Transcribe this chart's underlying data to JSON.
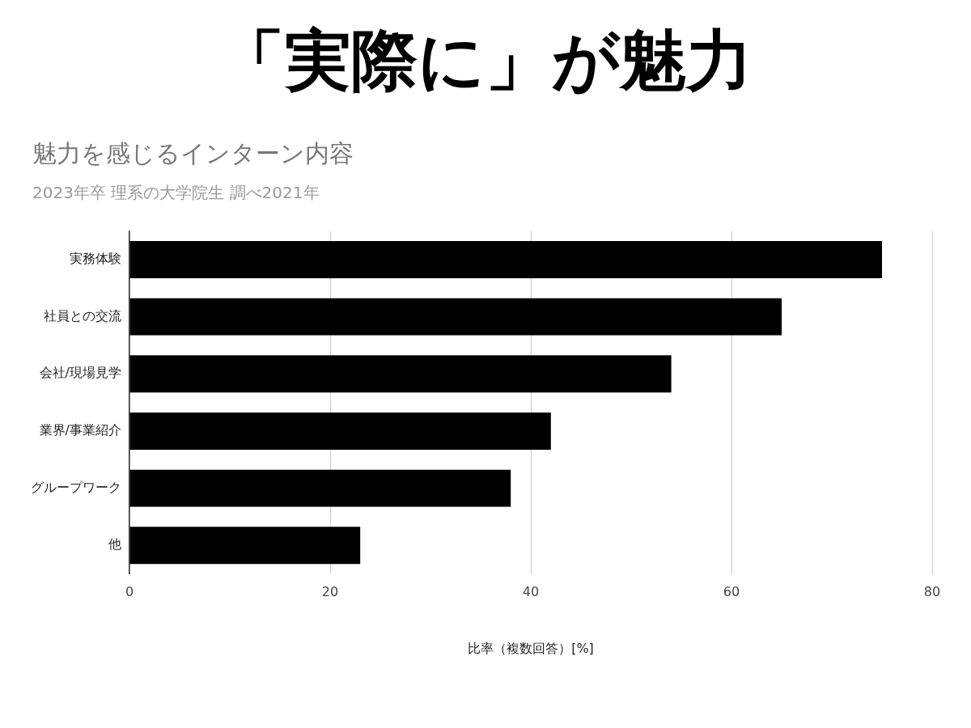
{
  "chart_data": {
    "type": "bar",
    "orientation": "horizontal",
    "title": "「実際に」が魅力",
    "subtitle": "魅力を感じるインターン内容",
    "annotations": [
      "2023年卒 理系の大学院生 調べ2021年"
    ],
    "categories": [
      "実務体験",
      "社員との交流",
      "会社/現場見学",
      "業界/事業紹介",
      "グループワーク",
      "他"
    ],
    "values": [
      75,
      65,
      54,
      42,
      38,
      23
    ],
    "color": "#000000",
    "xlim": [
      0,
      80
    ],
    "xticks": [
      0,
      20,
      40,
      60,
      80
    ],
    "xlabel": "比率（複数回答）[%]",
    "grid": "x",
    "legend": false
  }
}
